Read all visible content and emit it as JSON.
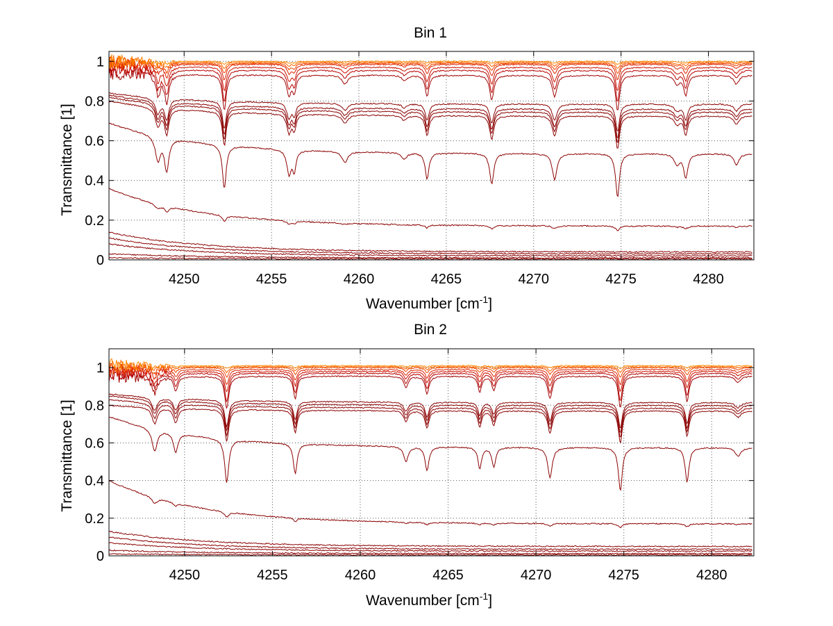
{
  "chart_data": [
    {
      "type": "line",
      "title": "Bin 1",
      "xlabel": "Wavenumber [cm",
      "xlabel_sup": "-1",
      "xlabel_end": "]",
      "ylabel": "Transmittance [1]",
      "xlim": [
        4245.7,
        4282.6
      ],
      "ylim": [
        0,
        1.05
      ],
      "xticks": [
        "4250",
        "4255",
        "4260",
        "4265",
        "4270",
        "4275",
        "4280"
      ],
      "yticks": [
        "0",
        "0.2",
        "0.4",
        "0.6",
        "0.8",
        "1"
      ],
      "grid": true,
      "x_start": 4245.7,
      "x_end": 4282.5,
      "absorption_lines": [
        {
          "x": 4248.5,
          "depth": 0.55,
          "width": 0.18
        },
        {
          "x": 4249.0,
          "depth": 0.75,
          "width": 0.15
        },
        {
          "x": 4252.3,
          "depth": 1.0,
          "width": 0.13
        },
        {
          "x": 4256.0,
          "depth": 0.55,
          "width": 0.15
        },
        {
          "x": 4256.3,
          "depth": 0.45,
          "width": 0.12
        },
        {
          "x": 4259.2,
          "depth": 0.25,
          "width": 0.2
        },
        {
          "x": 4262.6,
          "depth": 0.15,
          "width": 0.18
        },
        {
          "x": 4263.9,
          "depth": 0.6,
          "width": 0.13
        },
        {
          "x": 4267.6,
          "depth": 0.7,
          "width": 0.14
        },
        {
          "x": 4271.2,
          "depth": 0.6,
          "width": 0.16
        },
        {
          "x": 4274.8,
          "depth": 1.0,
          "width": 0.13
        },
        {
          "x": 4278.2,
          "depth": 0.25,
          "width": 0.18
        },
        {
          "x": 4278.7,
          "depth": 0.55,
          "width": 0.14
        },
        {
          "x": 4281.6,
          "depth": 0.25,
          "width": 0.18
        }
      ],
      "series": [
        {
          "color": "#8b0000",
          "start": 0.84,
          "end": 0.785,
          "scale": 0.14
        },
        {
          "color": "#8b0000",
          "start": 0.83,
          "end": 0.76,
          "scale": 0.15
        },
        {
          "color": "#8b0000",
          "start": 0.82,
          "end": 0.745,
          "scale": 0.16
        },
        {
          "color": "#8b0000",
          "start": 0.8,
          "end": 0.725,
          "scale": 0.17
        },
        {
          "color": "#8b0000",
          "start": 0.69,
          "end": 0.535,
          "scale": 0.22
        },
        {
          "color": "#8b0000",
          "start": 0.36,
          "end": 0.17,
          "scale": 0.07
        },
        {
          "color": "#8b0000",
          "start": 0.14,
          "end": 0.04,
          "scale": 0.02
        },
        {
          "color": "#8b0000",
          "start": 0.11,
          "end": 0.03,
          "scale": 0.015
        },
        {
          "color": "#8b0000",
          "start": 0.08,
          "end": 0.02,
          "scale": 0.01
        },
        {
          "color": "#8b0000",
          "start": 0.03,
          "end": 0.01,
          "scale": 0.005
        },
        {
          "color": "#8b0000",
          "start": 0.01,
          "end": 0.005,
          "scale": 0.0
        },
        {
          "color": "#a00000",
          "start": 0.94,
          "end": 0.93,
          "scale": 0.18
        },
        {
          "color": "#b80000",
          "start": 0.96,
          "end": 0.955,
          "scale": 0.16
        },
        {
          "color": "#cc1100",
          "start": 0.975,
          "end": 0.97,
          "scale": 0.12
        },
        {
          "color": "#dd2200",
          "start": 0.985,
          "end": 0.985,
          "scale": 0.08
        },
        {
          "color": "#ee4400",
          "start": 0.99,
          "end": 0.99,
          "scale": 0.05
        },
        {
          "color": "#ff6600",
          "start": 0.995,
          "end": 0.995,
          "scale": 0.03
        },
        {
          "color": "#ff8800",
          "start": 1.0,
          "end": 1.0,
          "scale": 0.015
        }
      ]
    },
    {
      "type": "line",
      "title": "Bin 2",
      "xlabel": "Wavenumber [cm",
      "xlabel_sup": "-1",
      "xlabel_end": "]",
      "ylabel": "Transmittance [1]",
      "xlim": [
        4245.7,
        4282.4
      ],
      "ylim": [
        0,
        1.1
      ],
      "xticks": [
        "4250",
        "4255",
        "4260",
        "4265",
        "4270",
        "4275",
        "4280"
      ],
      "yticks": [
        "0",
        "0.2",
        "0.4",
        "0.6",
        "0.8",
        "1"
      ],
      "grid": true,
      "x_start": 4245.7,
      "x_end": 4282.3,
      "absorption_lines": [
        {
          "x": 4248.3,
          "depth": 0.5,
          "width": 0.18
        },
        {
          "x": 4249.5,
          "depth": 0.45,
          "width": 0.15
        },
        {
          "x": 4252.4,
          "depth": 1.0,
          "width": 0.14
        },
        {
          "x": 4256.3,
          "depth": 0.7,
          "width": 0.13
        },
        {
          "x": 4262.6,
          "depth": 0.35,
          "width": 0.15
        },
        {
          "x": 4263.8,
          "depth": 0.55,
          "width": 0.13
        },
        {
          "x": 4266.8,
          "depth": 0.5,
          "width": 0.12
        },
        {
          "x": 4267.6,
          "depth": 0.45,
          "width": 0.13
        },
        {
          "x": 4270.8,
          "depth": 0.7,
          "width": 0.15
        },
        {
          "x": 4274.8,
          "depth": 1.0,
          "width": 0.13
        },
        {
          "x": 4278.6,
          "depth": 0.8,
          "width": 0.13
        },
        {
          "x": 4281.5,
          "depth": 0.2,
          "width": 0.2
        }
      ],
      "series": [
        {
          "color": "#8b0000",
          "start": 0.86,
          "end": 0.815,
          "scale": 0.14
        },
        {
          "color": "#8b0000",
          "start": 0.85,
          "end": 0.8,
          "scale": 0.15
        },
        {
          "color": "#8b0000",
          "start": 0.83,
          "end": 0.785,
          "scale": 0.16
        },
        {
          "color": "#8b0000",
          "start": 0.8,
          "end": 0.77,
          "scale": 0.17
        },
        {
          "color": "#8b0000",
          "start": 0.74,
          "end": 0.575,
          "scale": 0.23
        },
        {
          "color": "#8b0000",
          "start": 0.4,
          "end": 0.17,
          "scale": 0.06
        },
        {
          "color": "#8b0000",
          "start": 0.13,
          "end": 0.05,
          "scale": 0.02
        },
        {
          "color": "#8b0000",
          "start": 0.1,
          "end": 0.035,
          "scale": 0.015
        },
        {
          "color": "#8b0000",
          "start": 0.07,
          "end": 0.025,
          "scale": 0.01
        },
        {
          "color": "#8b0000",
          "start": 0.03,
          "end": 0.012,
          "scale": 0.005
        },
        {
          "color": "#8b0000",
          "start": 0.01,
          "end": 0.005,
          "scale": 0.0
        },
        {
          "color": "#a00000",
          "start": 0.95,
          "end": 0.955,
          "scale": 0.17
        },
        {
          "color": "#b80000",
          "start": 0.97,
          "end": 0.97,
          "scale": 0.15
        },
        {
          "color": "#cc1100",
          "start": 0.98,
          "end": 0.98,
          "scale": 0.11
        },
        {
          "color": "#dd2200",
          "start": 0.99,
          "end": 0.99,
          "scale": 0.08
        },
        {
          "color": "#ee4400",
          "start": 1.0,
          "end": 1.0,
          "scale": 0.05
        },
        {
          "color": "#ff6600",
          "start": 1.005,
          "end": 1.005,
          "scale": 0.03
        },
        {
          "color": "#ff8800",
          "start": 1.01,
          "end": 1.01,
          "scale": 0.015
        }
      ]
    }
  ]
}
